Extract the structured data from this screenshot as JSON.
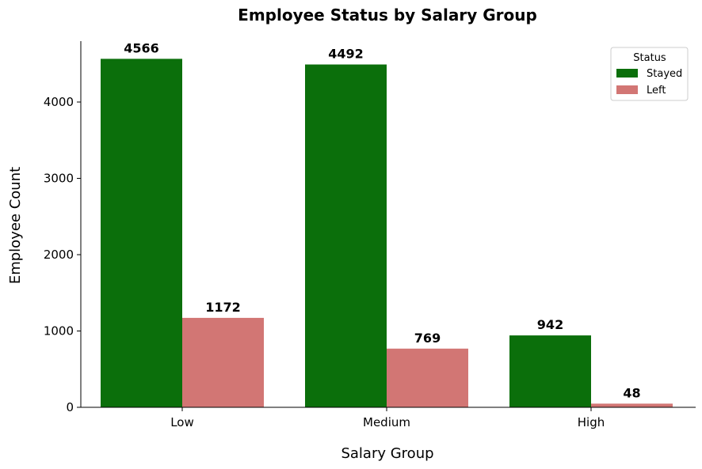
{
  "chart_data": {
    "type": "bar",
    "title": "Employee Status by Salary Group",
    "xlabel": "Salary Group",
    "ylabel": "Employee Count",
    "categories": [
      "Low",
      "Medium",
      "High"
    ],
    "series": [
      {
        "name": "Stayed",
        "values": [
          4566,
          4492,
          942
        ],
        "color": "#0b6f0b"
      },
      {
        "name": "Left",
        "values": [
          1172,
          769,
          48
        ],
        "color": "#d27674"
      }
    ],
    "ylim": [
      0,
      4798
    ],
    "yticks": [
      0,
      1000,
      2000,
      3000,
      4000
    ],
    "grid": false,
    "legend": {
      "title": "Status",
      "position": "top-right"
    }
  }
}
